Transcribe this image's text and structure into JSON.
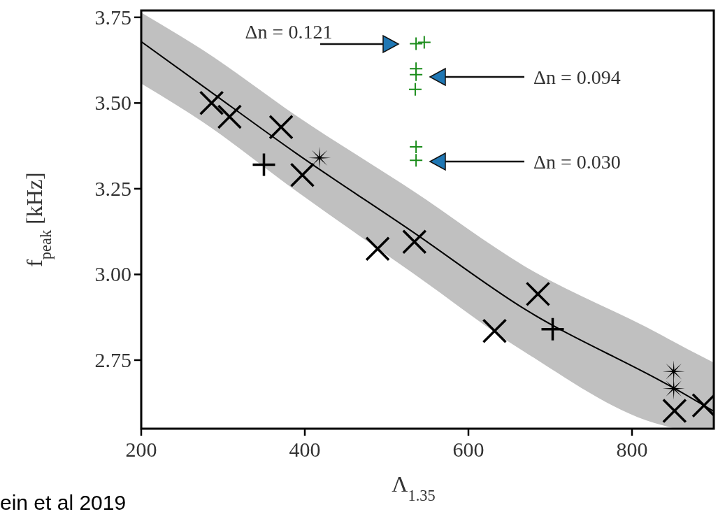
{
  "chart_data": {
    "type": "scatter",
    "xlabel": "Λ$_{1.35}$",
    "ylabel": "f$_{peak}$ [kHz]",
    "xlim": [
      200,
      900
    ],
    "xticks": [
      200,
      400,
      600,
      800
    ],
    "ylim": [
      2.55,
      3.77
    ],
    "yticks": [
      {
        "value": 2.75,
        "label": "2.75"
      },
      {
        "value": 3.0,
        "label": "3.00"
      },
      {
        "value": 3.25,
        "label": "3.25"
      },
      {
        "value": 3.5,
        "label": "3.50"
      },
      3.75
    ],
    "grid": false,
    "legend": false,
    "series": [
      {
        "type": "line",
        "color": "#000000",
        "marker": "none",
        "x": [
          200,
          275,
          389,
          532,
          668,
          837,
          850,
          899
        ],
        "values": [
          3.679,
          3.55,
          3.354,
          3.124,
          2.9,
          2.687,
          2.67,
          2.602
        ],
        "lower": [
          3.557,
          3.445,
          3.244,
          3.004,
          2.775,
          2.56,
          2.553,
          2.553
        ],
        "upper": [
          3.764,
          3.655,
          3.464,
          3.244,
          3.025,
          2.822,
          2.805,
          2.744
        ]
      },
      {
        "color": "#000000",
        "marker": "cross",
        "x": [
          286,
          308,
          371,
          397,
          489,
          534,
          632,
          685,
          852,
          888
        ],
        "values": [
          3.5,
          3.46,
          3.43,
          3.29,
          3.075,
          3.095,
          2.835,
          2.943,
          2.602,
          2.618
        ]
      },
      {
        "color": "#000000",
        "x": [
          350,
          703
        ],
        "values": [
          3.32,
          2.84
        ]
      },
      {
        "color": "#000000",
        "marker": "star",
        "x": [
          418,
          851,
          851
        ],
        "values": [
          3.34,
          2.717,
          2.667
        ]
      },
      {
        "color": "#1a8c1a",
        "x": [
          536,
          546,
          536,
          536,
          535,
          536,
          536
        ],
        "values": [
          3.673,
          3.677,
          3.6,
          3.583,
          3.54,
          3.372,
          3.333
        ]
      }
    ],
    "annotations": [
      "Δn = 0.121",
      "Δn = 0.094",
      "Δn = 0.030",
      "ein et al 2019"
    ]
  }
}
